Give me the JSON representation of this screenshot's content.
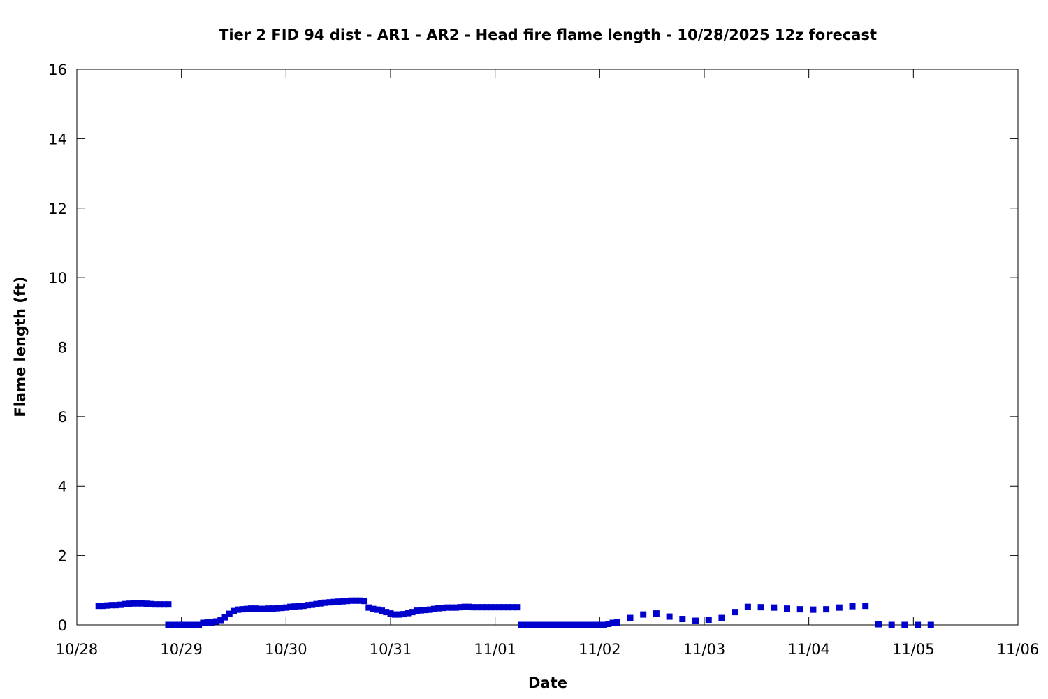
{
  "chart_data": {
    "type": "scatter",
    "title": "Tier 2 FID 94 dist - AR1 - AR2 - Head fire flame length - 10/28/2025 12z forecast",
    "xlabel": "Date",
    "ylabel": "Flame length (ft)",
    "xlim": [
      "10/28 00:00",
      "11/06 00:00"
    ],
    "ylim": [
      0,
      16
    ],
    "x_ticks": [
      "10/28",
      "10/29",
      "10/30",
      "10/31",
      "11/01",
      "11/02",
      "11/03",
      "11/04",
      "11/05",
      "11/06"
    ],
    "y_ticks": [
      0,
      2,
      4,
      6,
      8,
      10,
      12,
      14,
      16
    ],
    "grid": false,
    "legend": "none",
    "marker": "square",
    "series": [
      {
        "color": "#0000cc",
        "points": [
          [
            "10/28 05:00",
            0.55
          ],
          [
            "10/28 06:00",
            0.55
          ],
          [
            "10/28 07:00",
            0.56
          ],
          [
            "10/28 08:00",
            0.57
          ],
          [
            "10/28 09:00",
            0.57
          ],
          [
            "10/28 10:00",
            0.58
          ],
          [
            "10/28 11:00",
            0.6
          ],
          [
            "10/28 12:00",
            0.61
          ],
          [
            "10/28 13:00",
            0.62
          ],
          [
            "10/28 14:00",
            0.62
          ],
          [
            "10/28 15:00",
            0.62
          ],
          [
            "10/28 16:00",
            0.61
          ],
          [
            "10/28 17:00",
            0.6
          ],
          [
            "10/28 18:00",
            0.59
          ],
          [
            "10/28 19:00",
            0.59
          ],
          [
            "10/28 20:00",
            0.59
          ],
          [
            "10/28 21:00",
            0.59
          ],
          [
            "10/28 21:00",
            0.0
          ],
          [
            "10/28 22:00",
            0.0
          ],
          [
            "10/28 23:00",
            0.0
          ],
          [
            "10/29 00:00",
            0.0
          ],
          [
            "10/29 01:00",
            0.0
          ],
          [
            "10/29 02:00",
            0.0
          ],
          [
            "10/29 03:00",
            0.0
          ],
          [
            "10/29 04:00",
            0.0
          ],
          [
            "10/29 05:00",
            0.06
          ],
          [
            "10/29 06:00",
            0.07
          ],
          [
            "10/29 07:00",
            0.07
          ],
          [
            "10/29 08:00",
            0.1
          ],
          [
            "10/29 09:00",
            0.14
          ],
          [
            "10/29 10:00",
            0.22
          ],
          [
            "10/29 11:00",
            0.32
          ],
          [
            "10/29 12:00",
            0.4
          ],
          [
            "10/29 13:00",
            0.44
          ],
          [
            "10/29 14:00",
            0.45
          ],
          [
            "10/29 15:00",
            0.46
          ],
          [
            "10/29 16:00",
            0.47
          ],
          [
            "10/29 17:00",
            0.47
          ],
          [
            "10/29 18:00",
            0.46
          ],
          [
            "10/29 19:00",
            0.46
          ],
          [
            "10/29 20:00",
            0.47
          ],
          [
            "10/29 21:00",
            0.47
          ],
          [
            "10/29 22:00",
            0.48
          ],
          [
            "10/29 23:00",
            0.49
          ],
          [
            "10/30 00:00",
            0.5
          ],
          [
            "10/30 01:00",
            0.52
          ],
          [
            "10/30 02:00",
            0.53
          ],
          [
            "10/30 03:00",
            0.54
          ],
          [
            "10/30 04:00",
            0.55
          ],
          [
            "10/30 05:00",
            0.57
          ],
          [
            "10/30 06:00",
            0.58
          ],
          [
            "10/30 07:00",
            0.6
          ],
          [
            "10/30 08:00",
            0.62
          ],
          [
            "10/30 09:00",
            0.64
          ],
          [
            "10/30 10:00",
            0.65
          ],
          [
            "10/30 11:00",
            0.66
          ],
          [
            "10/30 12:00",
            0.67
          ],
          [
            "10/30 13:00",
            0.68
          ],
          [
            "10/30 14:00",
            0.69
          ],
          [
            "10/30 15:00",
            0.7
          ],
          [
            "10/30 16:00",
            0.7
          ],
          [
            "10/30 17:00",
            0.7
          ],
          [
            "10/30 18:00",
            0.69
          ],
          [
            "10/30 19:00",
            0.5
          ],
          [
            "10/30 20:00",
            0.46
          ],
          [
            "10/30 21:00",
            0.44
          ],
          [
            "10/30 22:00",
            0.41
          ],
          [
            "10/30 23:00",
            0.37
          ],
          [
            "10/31 00:00",
            0.33
          ],
          [
            "10/31 01:00",
            0.3
          ],
          [
            "10/31 02:00",
            0.3
          ],
          [
            "10/31 03:00",
            0.31
          ],
          [
            "10/31 04:00",
            0.34
          ],
          [
            "10/31 05:00",
            0.37
          ],
          [
            "10/31 06:00",
            0.41
          ],
          [
            "10/31 07:00",
            0.42
          ],
          [
            "10/31 08:00",
            0.43
          ],
          [
            "10/31 09:00",
            0.44
          ],
          [
            "10/31 10:00",
            0.46
          ],
          [
            "10/31 11:00",
            0.48
          ],
          [
            "10/31 12:00",
            0.49
          ],
          [
            "10/31 13:00",
            0.5
          ],
          [
            "10/31 14:00",
            0.5
          ],
          [
            "10/31 15:00",
            0.5
          ],
          [
            "10/31 16:00",
            0.51
          ],
          [
            "10/31 17:00",
            0.52
          ],
          [
            "10/31 18:00",
            0.52
          ],
          [
            "10/31 19:00",
            0.51
          ],
          [
            "10/31 20:00",
            0.51
          ],
          [
            "10/31 21:00",
            0.51
          ],
          [
            "10/31 22:00",
            0.51
          ],
          [
            "10/31 23:00",
            0.51
          ],
          [
            "11/01 00:00",
            0.51
          ],
          [
            "11/01 01:00",
            0.51
          ],
          [
            "11/01 02:00",
            0.51
          ],
          [
            "11/01 03:00",
            0.51
          ],
          [
            "11/01 04:00",
            0.51
          ],
          [
            "11/01 05:00",
            0.51
          ],
          [
            "11/01 06:00",
            0.0
          ],
          [
            "11/01 07:00",
            0.0
          ],
          [
            "11/01 08:00",
            0.0
          ],
          [
            "11/01 09:00",
            0.0
          ],
          [
            "11/01 10:00",
            0.0
          ],
          [
            "11/01 11:00",
            0.0
          ],
          [
            "11/01 12:00",
            0.0
          ],
          [
            "11/01 13:00",
            0.0
          ],
          [
            "11/01 14:00",
            0.0
          ],
          [
            "11/01 15:00",
            0.0
          ],
          [
            "11/01 16:00",
            0.0
          ],
          [
            "11/01 17:00",
            0.0
          ],
          [
            "11/01 18:00",
            0.0
          ],
          [
            "11/01 19:00",
            0.0
          ],
          [
            "11/01 20:00",
            0.0
          ],
          [
            "11/01 21:00",
            0.0
          ],
          [
            "11/01 22:00",
            0.0
          ],
          [
            "11/01 23:00",
            0.0
          ],
          [
            "11/02 00:00",
            0.0
          ],
          [
            "11/02 01:00",
            0.0
          ],
          [
            "11/02 02:00",
            0.03
          ],
          [
            "11/02 03:00",
            0.06
          ],
          [
            "11/02 04:00",
            0.07
          ],
          [
            "11/02 07:00",
            0.2
          ],
          [
            "11/02 10:00",
            0.3
          ],
          [
            "11/02 13:00",
            0.33
          ],
          [
            "11/02 16:00",
            0.24
          ],
          [
            "11/02 19:00",
            0.17
          ],
          [
            "11/02 22:00",
            0.12
          ],
          [
            "11/03 01:00",
            0.15
          ],
          [
            "11/03 04:00",
            0.2
          ],
          [
            "11/03 07:00",
            0.37
          ],
          [
            "11/03 10:00",
            0.52
          ],
          [
            "11/03 13:00",
            0.51
          ],
          [
            "11/03 16:00",
            0.5
          ],
          [
            "11/03 19:00",
            0.47
          ],
          [
            "11/03 22:00",
            0.45
          ],
          [
            "11/04 01:00",
            0.44
          ],
          [
            "11/04 04:00",
            0.45
          ],
          [
            "11/04 07:00",
            0.5
          ],
          [
            "11/04 10:00",
            0.54
          ],
          [
            "11/04 13:00",
            0.55
          ],
          [
            "11/04 16:00",
            0.02
          ],
          [
            "11/04 19:00",
            0.0
          ],
          [
            "11/04 22:00",
            0.0
          ],
          [
            "11/05 01:00",
            0.0
          ],
          [
            "11/05 04:00",
            0.0
          ]
        ]
      }
    ]
  }
}
